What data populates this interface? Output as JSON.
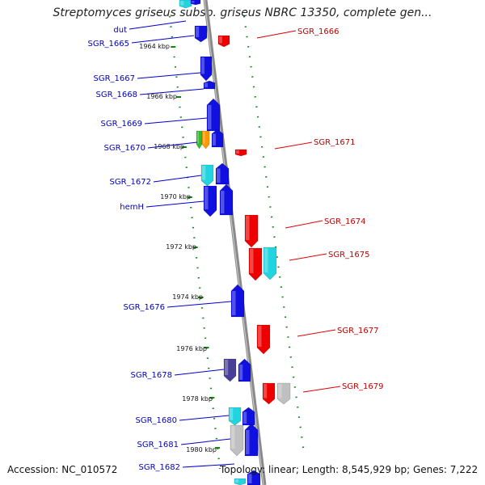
{
  "title": "Streptomyces griseus subsp. griseus NBRC 13350, complete gen...",
  "accession": "Accession: NC_010572",
  "topology": "Topology: linear; Length: 8,545,929 bp; Genes: 7,222",
  "colors": {
    "forward": "#1010e0",
    "reverse": "#ee0000",
    "cyan": "#22d4e0",
    "grey": "#c0c0c0",
    "slate": "#4a3f96",
    "green": "#33bb33",
    "orange": "#ff9a00",
    "leader_left": "#0000cc",
    "leader_right": "#dd0000",
    "dotted": "#118811"
  },
  "kbp_markers": [
    {
      "kbp": 1964,
      "label": "1964 kbp"
    },
    {
      "kbp": 1966,
      "label": "1966 kbp"
    },
    {
      "kbp": 1968,
      "label": "1968 kbp"
    },
    {
      "kbp": 1970,
      "label": "1970 kbp"
    },
    {
      "kbp": 1972,
      "label": "1972 kbp"
    },
    {
      "kbp": 1974,
      "label": "1974 kbp"
    },
    {
      "kbp": 1976,
      "label": "1976 kbp"
    },
    {
      "kbp": 1978,
      "label": "1978 kbp"
    },
    {
      "kbp": 1980,
      "label": "1980 kbp"
    }
  ],
  "genes_left": [
    {
      "name": "dut"
    },
    {
      "name": "SGR_1665"
    },
    {
      "name": "SGR_1667"
    },
    {
      "name": "SGR_1668"
    },
    {
      "name": "SGR_1669"
    },
    {
      "name": "SGR_1670"
    },
    {
      "name": "SGR_1672"
    },
    {
      "name": "hemH"
    },
    {
      "name": "SGR_1676"
    },
    {
      "name": "SGR_1678"
    },
    {
      "name": "SGR_1680"
    },
    {
      "name": "SGR_1681"
    },
    {
      "name": "SGR_1682"
    }
  ],
  "genes_right": [
    {
      "name": "SGR_1666"
    },
    {
      "name": "SGR_1671"
    },
    {
      "name": "SGR_1674"
    },
    {
      "name": "SGR_1675"
    },
    {
      "name": "SGR_1677"
    },
    {
      "name": "SGR_1679"
    }
  ]
}
